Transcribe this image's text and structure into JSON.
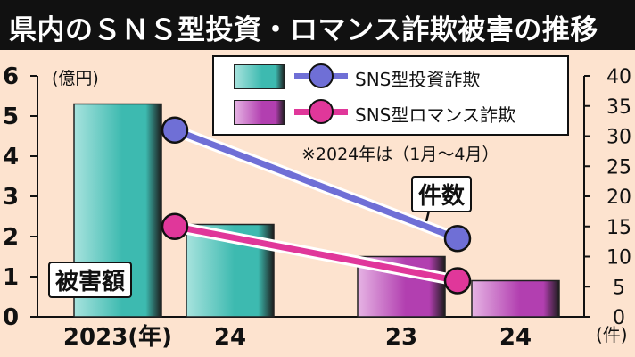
{
  "title": "県内のＳＮＳ型投資・ロマンス詐欺被害の推移",
  "left_unit": "(億円)",
  "right_unit": "(件)",
  "note": "※2024年は（1月～4月）",
  "callouts": {
    "bars": "被害額",
    "lines": "件数"
  },
  "colors": {
    "investment_bar": "#3dbab0",
    "romance_bar": "#b23fb0",
    "investment_line": "#6f6fd6",
    "romance_line": "#e0379a",
    "background": "#fde3cf"
  },
  "chart_data": {
    "type": "bar",
    "categories": [
      "2023(年)",
      "24",
      "23",
      "24"
    ],
    "series": [
      {
        "name": "SNS型投資詐欺",
        "kind": "bar",
        "axis": "left",
        "x": [
          "2023(年)",
          "24"
        ],
        "values": [
          5.3,
          2.3
        ]
      },
      {
        "name": "SNS型ロマンス詐欺",
        "kind": "bar",
        "axis": "left",
        "x": [
          "23",
          "24"
        ],
        "values": [
          1.5,
          0.9
        ]
      },
      {
        "name": "SNS型投資詐欺",
        "kind": "line",
        "axis": "right",
        "x": [
          "2023(年)",
          "24"
        ],
        "values": [
          31,
          13
        ]
      },
      {
        "name": "SNS型ロマンス詐欺",
        "kind": "line",
        "axis": "right",
        "x": [
          "2023(年)",
          "24"
        ],
        "values": [
          15,
          6
        ]
      }
    ],
    "left_axis": {
      "label": "(億円)",
      "ticks": [
        0,
        1,
        2,
        3,
        4,
        5,
        6
      ],
      "ylim": [
        0,
        6
      ]
    },
    "right_axis": {
      "label": "(件)",
      "ticks": [
        0,
        5,
        10,
        15,
        20,
        25,
        30,
        35,
        40
      ],
      "ylim": [
        0,
        40
      ]
    },
    "grid": false,
    "legend": "top-right"
  }
}
